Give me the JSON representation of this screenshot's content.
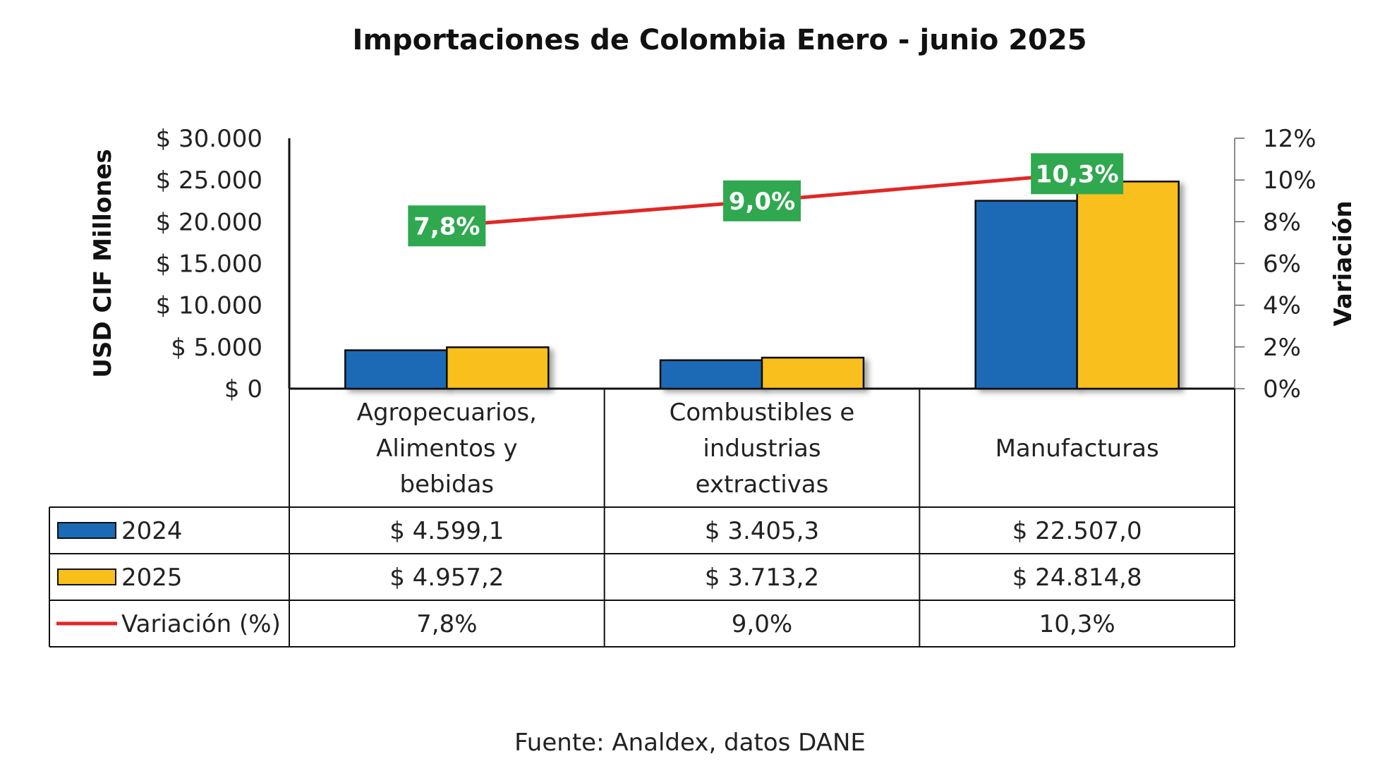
{
  "chart_data": {
    "type": "bar",
    "title": "Importaciones de Colombia Enero - junio 2025",
    "ylabel": "USD CIF Millones",
    "y2label": "Variación",
    "ylim": [
      0,
      30000
    ],
    "y2lim": [
      0,
      12
    ],
    "y_ticks": [
      "$ 0",
      "$ 5.000",
      "$ 10.000",
      "$ 15.000",
      "$ 20.000",
      "$ 25.000",
      "$ 30.000"
    ],
    "y2_ticks": [
      "0%",
      "2%",
      "4%",
      "6%",
      "8%",
      "10%",
      "12%"
    ],
    "categories": [
      [
        "Agropecuarios,",
        "Alimentos y",
        "bebidas"
      ],
      [
        "Combustibles e",
        "industrias",
        "extractivas"
      ],
      [
        "Manufacturas"
      ]
    ],
    "series": [
      {
        "name": "2024",
        "kind": "bar",
        "color": "#1a6ab5",
        "values": [
          4599.1,
          3405.3,
          22507.0
        ],
        "labels": [
          "$ 4.599,1",
          "$ 3.405,3",
          "$ 22.507,0"
        ]
      },
      {
        "name": "2025",
        "kind": "bar",
        "color": "#f9bf1b",
        "values": [
          4957.2,
          3713.2,
          24814.8
        ],
        "labels": [
          "$ 4.957,2",
          "$ 3.713,2",
          "$ 24.814,8"
        ]
      },
      {
        "name": "Variación (%)",
        "kind": "line",
        "axis": "secondary",
        "color": "#e02826",
        "label_bg": "#2fa84f",
        "values": [
          7.8,
          9.0,
          10.3
        ],
        "labels": [
          "7,8%",
          "9,0%",
          "10,3%"
        ]
      }
    ],
    "source": "Fuente: Analdex, datos DANE"
  }
}
